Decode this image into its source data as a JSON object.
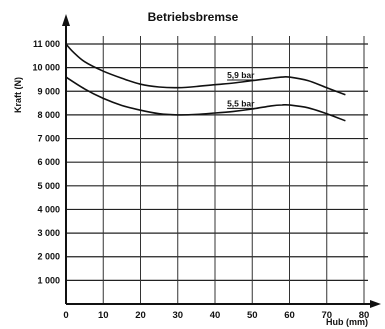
{
  "chart_data": {
    "type": "line",
    "title": "Betriebsbremse",
    "xlabel": "Hub (mm)",
    "ylabel": "Kraft (N)",
    "xlim": [
      0,
      80
    ],
    "ylim": [
      0,
      11000
    ],
    "x_ticks": [
      "0",
      "10",
      "20",
      "30",
      "40",
      "50",
      "60",
      "70",
      "80"
    ],
    "y_ticks": [
      "1 000",
      "2 000",
      "3 000",
      "4 000",
      "5 000",
      "6 000",
      "7 000",
      "8 000",
      "9 000",
      "10 000",
      "11 000"
    ],
    "grid": true,
    "series": [
      {
        "name": "5,9 bar",
        "x": [
          0,
          2,
          5,
          10,
          15,
          20,
          25,
          30,
          35,
          40,
          45,
          50,
          55,
          58,
          60,
          65,
          70,
          75
        ],
        "y": [
          11000,
          10650,
          10250,
          9850,
          9550,
          9300,
          9180,
          9150,
          9200,
          9280,
          9350,
          9450,
          9550,
          9600,
          9600,
          9450,
          9150,
          8850
        ]
      },
      {
        "name": "5,5 bar",
        "x": [
          0,
          5,
          10,
          15,
          20,
          25,
          30,
          35,
          40,
          45,
          50,
          55,
          58,
          60,
          65,
          70,
          75
        ],
        "y": [
          9600,
          9100,
          8700,
          8400,
          8200,
          8050,
          8000,
          8020,
          8080,
          8150,
          8250,
          8380,
          8420,
          8420,
          8300,
          8050,
          7750
        ]
      }
    ]
  }
}
